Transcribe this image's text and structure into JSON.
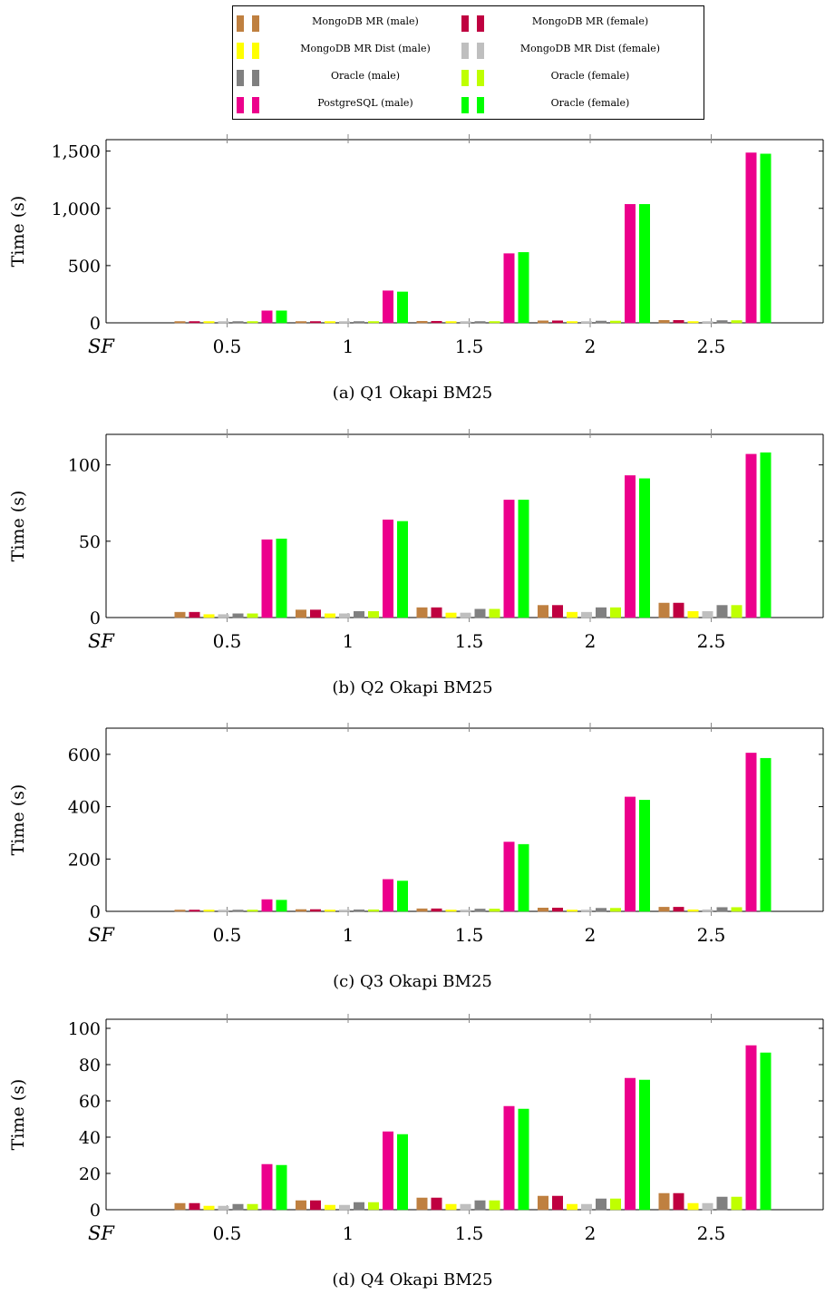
{
  "legend": [
    {
      "label": "MongoDB MR (male)",
      "color": "#bf8040"
    },
    {
      "label": "MongoDB MR (female)",
      "color": "#bf0040"
    },
    {
      "label": "MongoDB MR Dist (male)",
      "color": "#ffff00"
    },
    {
      "label": "MongoDB MR Dist (female)",
      "color": "#bfbfbf"
    },
    {
      "label": "Oracle (male)",
      "color": "#808080"
    },
    {
      "label": "Oracle (female)",
      "color": "#bfff00"
    },
    {
      "label": "PostgreSQL (male)",
      "color": "#ec008c"
    },
    {
      "label": "Oracle (female)",
      "color": "#00ff00"
    }
  ],
  "chart_data": [
    {
      "type": "bar",
      "caption": "(a) Q1 Okapi BM25",
      "ylabel": "Time (s)",
      "xlabel": "SF",
      "categories": [
        "0.5",
        "1",
        "1.5",
        "2",
        "2.5"
      ],
      "ylim": [
        0,
        1600
      ],
      "yticks": [
        0,
        500,
        1000,
        1500
      ],
      "yticklabels": [
        "0",
        "500",
        "1,000",
        "1,500"
      ],
      "series": [
        {
          "name": "MongoDB MR (male)",
          "values": [
            5,
            9,
            14,
            18,
            22
          ]
        },
        {
          "name": "MongoDB MR (female)",
          "values": [
            5,
            9,
            14,
            18,
            22
          ]
        },
        {
          "name": "MongoDB MR Dist (male)",
          "values": [
            3,
            5,
            7,
            9,
            11
          ]
        },
        {
          "name": "MongoDB MR Dist (female)",
          "values": [
            3,
            5,
            7,
            9,
            11
          ]
        },
        {
          "name": "Oracle (male)",
          "values": [
            4,
            8,
            12,
            16,
            20
          ]
        },
        {
          "name": "Oracle (female)",
          "values": [
            4,
            8,
            12,
            16,
            20
          ]
        },
        {
          "name": "PostgreSQL (male)",
          "values": [
            105,
            280,
            605,
            1035,
            1485
          ]
        },
        {
          "name": "Oracle (female)",
          "values": [
            105,
            270,
            615,
            1035,
            1475
          ]
        }
      ]
    },
    {
      "type": "bar",
      "caption": "(b) Q2 Okapi BM25",
      "ylabel": "Time (s)",
      "xlabel": "SF",
      "categories": [
        "0.5",
        "1",
        "1.5",
        "2",
        "2.5"
      ],
      "ylim": [
        0,
        120
      ],
      "yticks": [
        0,
        50,
        100
      ],
      "yticklabels": [
        "0",
        "50",
        "100"
      ],
      "series": [
        {
          "name": "MongoDB MR (male)",
          "values": [
            3.5,
            5,
            6.5,
            8,
            9.5
          ]
        },
        {
          "name": "MongoDB MR (female)",
          "values": [
            3.5,
            5,
            6.5,
            8,
            9.5
          ]
        },
        {
          "name": "MongoDB MR Dist (male)",
          "values": [
            2,
            2.5,
            3,
            3.5,
            4
          ]
        },
        {
          "name": "MongoDB MR Dist (female)",
          "values": [
            2,
            2.5,
            3,
            3.5,
            4
          ]
        },
        {
          "name": "Oracle (male)",
          "values": [
            2.5,
            4,
            5.5,
            6.5,
            8
          ]
        },
        {
          "name": "Oracle (female)",
          "values": [
            2.5,
            4,
            5.5,
            6.5,
            8
          ]
        },
        {
          "name": "PostgreSQL (male)",
          "values": [
            51,
            64,
            77,
            93,
            107
          ]
        },
        {
          "name": "Oracle (female)",
          "values": [
            51.5,
            63,
            77,
            91,
            108
          ]
        }
      ]
    },
    {
      "type": "bar",
      "caption": "(c) Q3 Okapi BM25",
      "ylabel": "Time (s)",
      "xlabel": "SF",
      "categories": [
        "0.5",
        "1",
        "1.5",
        "2",
        "2.5"
      ],
      "ylim": [
        0,
        700
      ],
      "yticks": [
        0,
        200,
        400,
        600
      ],
      "yticklabels": [
        "0",
        "200",
        "400",
        "600"
      ],
      "series": [
        {
          "name": "MongoDB MR (male)",
          "values": [
            4,
            7,
            10,
            13,
            16
          ]
        },
        {
          "name": "MongoDB MR (female)",
          "values": [
            4,
            7,
            10,
            13,
            16
          ]
        },
        {
          "name": "MongoDB MR Dist (male)",
          "values": [
            2,
            3,
            4,
            5,
            6
          ]
        },
        {
          "name": "MongoDB MR Dist (female)",
          "values": [
            2,
            3,
            4,
            5,
            6
          ]
        },
        {
          "name": "Oracle (male)",
          "values": [
            3,
            6,
            9,
            12,
            15
          ]
        },
        {
          "name": "Oracle (female)",
          "values": [
            3,
            6,
            9,
            12,
            15
          ]
        },
        {
          "name": "PostgreSQL (male)",
          "values": [
            45,
            122,
            265,
            437,
            605
          ]
        },
        {
          "name": "Oracle (female)",
          "values": [
            43,
            116,
            256,
            425,
            585
          ]
        }
      ]
    },
    {
      "type": "bar",
      "caption": "(d) Q4 Okapi BM25",
      "ylabel": "Time (s)",
      "xlabel": "SF",
      "categories": [
        "0.5",
        "1",
        "1.5",
        "2",
        "2.5"
      ],
      "ylim": [
        0,
        105
      ],
      "yticks": [
        0,
        20,
        40,
        60,
        80,
        100
      ],
      "yticklabels": [
        "0",
        "20",
        "40",
        "60",
        "80",
        "100"
      ],
      "series": [
        {
          "name": "MongoDB MR (male)",
          "values": [
            3.5,
            5,
            6.5,
            7.5,
            9
          ]
        },
        {
          "name": "MongoDB MR (female)",
          "values": [
            3.5,
            5,
            6.5,
            7.5,
            9
          ]
        },
        {
          "name": "MongoDB MR Dist (male)",
          "values": [
            2,
            2.5,
            3,
            3,
            3.5
          ]
        },
        {
          "name": "MongoDB MR Dist (female)",
          "values": [
            2,
            2.5,
            3,
            3,
            3.5
          ]
        },
        {
          "name": "Oracle (male)",
          "values": [
            3,
            4,
            5,
            6,
            7
          ]
        },
        {
          "name": "Oracle (female)",
          "values": [
            3,
            4,
            5,
            6,
            7
          ]
        },
        {
          "name": "PostgreSQL (male)",
          "values": [
            25,
            43,
            57,
            72.5,
            90.5
          ]
        },
        {
          "name": "Oracle (female)",
          "values": [
            24.5,
            41.5,
            55.5,
            71.5,
            86.5
          ]
        }
      ]
    }
  ]
}
